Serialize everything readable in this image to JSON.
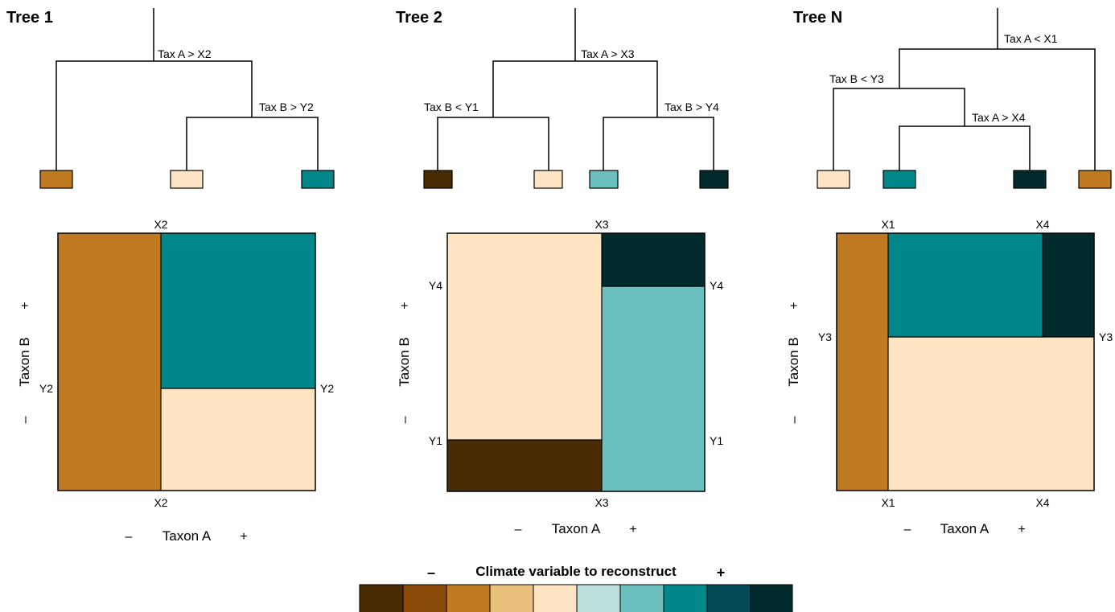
{
  "palette": [
    "#4a2c04",
    "#8a4a0a",
    "#c07a22",
    "#e8c07c",
    "#fde5c3",
    "#bde0df",
    "#6bc0bd",
    "#00878a",
    "#024b55",
    "#012b2c"
  ],
  "legend": {
    "title": "Climate variable to reconstruct",
    "minus": "–",
    "plus": "+"
  },
  "axes": {
    "x_label": "Taxon A",
    "y_label": "Taxon B",
    "minus": "–",
    "plus": "+"
  },
  "trees": [
    {
      "title": "Tree 1",
      "splits": [
        "Tax A > X2",
        "Tax B > Y2"
      ],
      "leaves": [
        "#c07a22",
        "#fde5c3",
        "#00878a"
      ],
      "plot": {
        "x_top": [
          "X2"
        ],
        "x_bottom": [
          "X2"
        ],
        "y_left": [
          "Y2"
        ],
        "y_right": [
          "Y2"
        ],
        "regions": [
          "#c07a22",
          "#00878a",
          "#fde5c3"
        ]
      }
    },
    {
      "title": "Tree 2",
      "splits": [
        "Tax A > X3",
        "Tax B < Y1",
        "Tax B > Y4"
      ],
      "leaves": [
        "#4a2c04",
        "#fde5c3",
        "#6bc0bd",
        "#012b2c"
      ],
      "plot": {
        "x_top": [
          "X3"
        ],
        "x_bottom": [
          "X3"
        ],
        "y_left": [
          "Y4",
          "Y1"
        ],
        "y_right": [
          "Y4",
          "Y1"
        ],
        "regions": [
          "#fde5c3",
          "#4a2c04",
          "#012b2c",
          "#6bc0bd"
        ]
      }
    },
    {
      "title": "Tree N",
      "splits": [
        "Tax A < X1",
        "Tax B < Y3",
        "Tax A > X4"
      ],
      "leaves": [
        "#fde5c3",
        "#00878a",
        "#012b2c",
        "#c07a22"
      ],
      "plot": {
        "x_top": [
          "X1",
          "X4"
        ],
        "x_bottom": [
          "X1",
          "X4"
        ],
        "y_left": [
          "Y3"
        ],
        "y_right": [
          "Y3"
        ],
        "regions": [
          "#c07a22",
          "#00878a",
          "#012b2c",
          "#fde5c3"
        ]
      }
    }
  ]
}
